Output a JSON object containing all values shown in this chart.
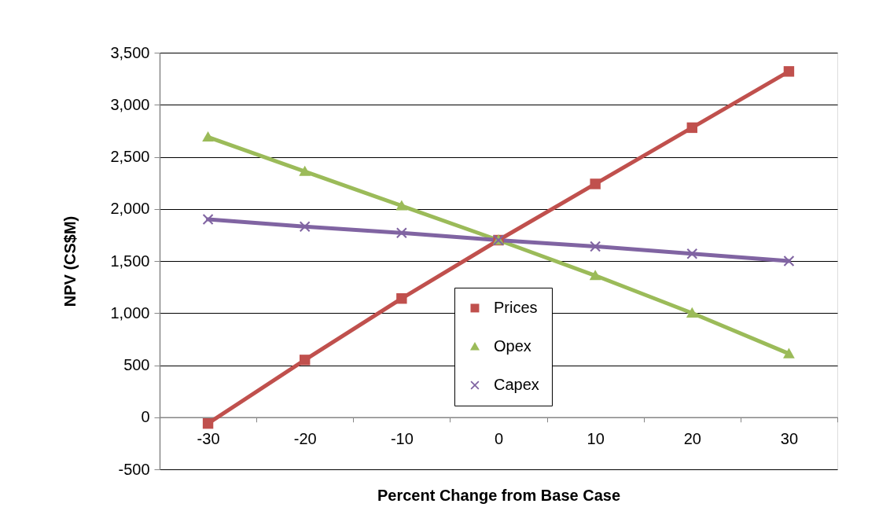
{
  "chart_data": {
    "type": "line",
    "xlabel": "Percent Change from Base Case",
    "ylabel": "NPV (CS$M)",
    "categories": [
      "-30",
      "-20",
      "-10",
      "0",
      "10",
      "20",
      "30"
    ],
    "series": [
      {
        "name": "Prices",
        "color": "#c0504d",
        "marker": "square",
        "values": [
          -60,
          550,
          1140,
          1700,
          2240,
          2780,
          3320
        ]
      },
      {
        "name": "Opex",
        "color": "#9bbb59",
        "marker": "triangle",
        "values": [
          2690,
          2360,
          2030,
          1700,
          1360,
          1000,
          610
        ]
      },
      {
        "name": "Capex",
        "color": "#8064a2",
        "marker": "cross",
        "values": [
          1900,
          1830,
          1770,
          1700,
          1640,
          1570,
          1500
        ]
      }
    ],
    "ylim": [
      -500,
      3500
    ],
    "yticks": [
      -500,
      0,
      500,
      {
        "value": 1000,
        "label": "1,000"
      },
      {
        "value": 1500,
        "label": "1,500"
      },
      {
        "value": 2000,
        "label": "2,000"
      },
      {
        "value": 2500,
        "label": "2,500"
      },
      {
        "value": 3000,
        "label": "3,000"
      },
      {
        "value": 3500,
        "label": "3,500"
      }
    ],
    "grid": "y",
    "legend": "bottom"
  }
}
